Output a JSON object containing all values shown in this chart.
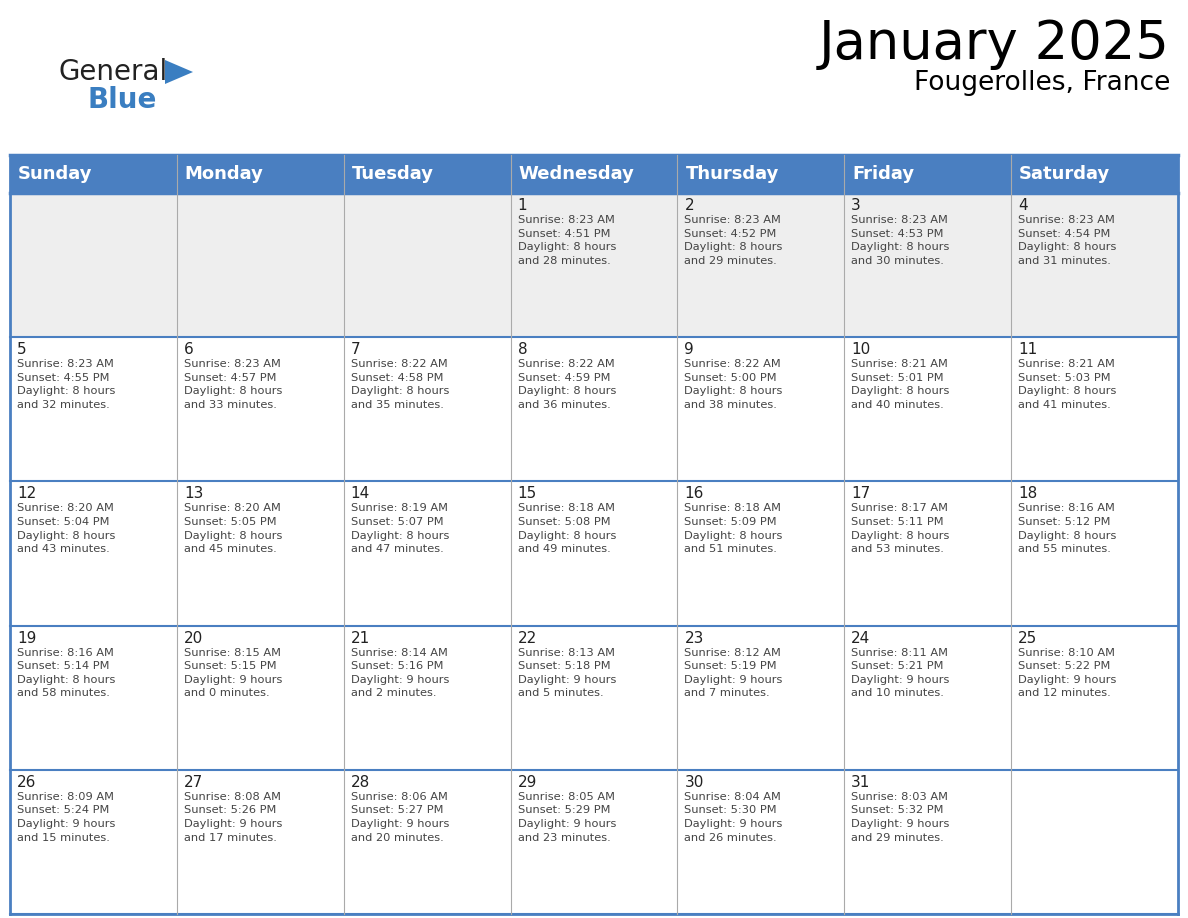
{
  "title": "January 2025",
  "subtitle": "Fougerolles, France",
  "header_bg": "#4A7FC1",
  "header_text_color": "#FFFFFF",
  "header_font_size": 13,
  "day_names": [
    "Sunday",
    "Monday",
    "Tuesday",
    "Wednesday",
    "Thursday",
    "Friday",
    "Saturday"
  ],
  "title_font_size": 38,
  "subtitle_font_size": 19,
  "cell_text_color": "#444444",
  "cell_number_color": "#222222",
  "cell_bg_white": "#FFFFFF",
  "cell_bg_gray": "#EEEEEE",
  "border_color": "#4A7FC1",
  "grid_line_color": "#AAAAAA",
  "logo_general_color": "#222222",
  "logo_blue_color": "#3A7EC1",
  "logo_triangle_color": "#3A7EC1",
  "days": [
    {
      "day": 0,
      "row": 0,
      "col": 0,
      "text": ""
    },
    {
      "day": 0,
      "row": 0,
      "col": 1,
      "text": ""
    },
    {
      "day": 0,
      "row": 0,
      "col": 2,
      "text": ""
    },
    {
      "day": 1,
      "row": 0,
      "col": 3,
      "text": "Sunrise: 8:23 AM\nSunset: 4:51 PM\nDaylight: 8 hours\nand 28 minutes."
    },
    {
      "day": 2,
      "row": 0,
      "col": 4,
      "text": "Sunrise: 8:23 AM\nSunset: 4:52 PM\nDaylight: 8 hours\nand 29 minutes."
    },
    {
      "day": 3,
      "row": 0,
      "col": 5,
      "text": "Sunrise: 8:23 AM\nSunset: 4:53 PM\nDaylight: 8 hours\nand 30 minutes."
    },
    {
      "day": 4,
      "row": 0,
      "col": 6,
      "text": "Sunrise: 8:23 AM\nSunset: 4:54 PM\nDaylight: 8 hours\nand 31 minutes."
    },
    {
      "day": 5,
      "row": 1,
      "col": 0,
      "text": "Sunrise: 8:23 AM\nSunset: 4:55 PM\nDaylight: 8 hours\nand 32 minutes."
    },
    {
      "day": 6,
      "row": 1,
      "col": 1,
      "text": "Sunrise: 8:23 AM\nSunset: 4:57 PM\nDaylight: 8 hours\nand 33 minutes."
    },
    {
      "day": 7,
      "row": 1,
      "col": 2,
      "text": "Sunrise: 8:22 AM\nSunset: 4:58 PM\nDaylight: 8 hours\nand 35 minutes."
    },
    {
      "day": 8,
      "row": 1,
      "col": 3,
      "text": "Sunrise: 8:22 AM\nSunset: 4:59 PM\nDaylight: 8 hours\nand 36 minutes."
    },
    {
      "day": 9,
      "row": 1,
      "col": 4,
      "text": "Sunrise: 8:22 AM\nSunset: 5:00 PM\nDaylight: 8 hours\nand 38 minutes."
    },
    {
      "day": 10,
      "row": 1,
      "col": 5,
      "text": "Sunrise: 8:21 AM\nSunset: 5:01 PM\nDaylight: 8 hours\nand 40 minutes."
    },
    {
      "day": 11,
      "row": 1,
      "col": 6,
      "text": "Sunrise: 8:21 AM\nSunset: 5:03 PM\nDaylight: 8 hours\nand 41 minutes."
    },
    {
      "day": 12,
      "row": 2,
      "col": 0,
      "text": "Sunrise: 8:20 AM\nSunset: 5:04 PM\nDaylight: 8 hours\nand 43 minutes."
    },
    {
      "day": 13,
      "row": 2,
      "col": 1,
      "text": "Sunrise: 8:20 AM\nSunset: 5:05 PM\nDaylight: 8 hours\nand 45 minutes."
    },
    {
      "day": 14,
      "row": 2,
      "col": 2,
      "text": "Sunrise: 8:19 AM\nSunset: 5:07 PM\nDaylight: 8 hours\nand 47 minutes."
    },
    {
      "day": 15,
      "row": 2,
      "col": 3,
      "text": "Sunrise: 8:18 AM\nSunset: 5:08 PM\nDaylight: 8 hours\nand 49 minutes."
    },
    {
      "day": 16,
      "row": 2,
      "col": 4,
      "text": "Sunrise: 8:18 AM\nSunset: 5:09 PM\nDaylight: 8 hours\nand 51 minutes."
    },
    {
      "day": 17,
      "row": 2,
      "col": 5,
      "text": "Sunrise: 8:17 AM\nSunset: 5:11 PM\nDaylight: 8 hours\nand 53 minutes."
    },
    {
      "day": 18,
      "row": 2,
      "col": 6,
      "text": "Sunrise: 8:16 AM\nSunset: 5:12 PM\nDaylight: 8 hours\nand 55 minutes."
    },
    {
      "day": 19,
      "row": 3,
      "col": 0,
      "text": "Sunrise: 8:16 AM\nSunset: 5:14 PM\nDaylight: 8 hours\nand 58 minutes."
    },
    {
      "day": 20,
      "row": 3,
      "col": 1,
      "text": "Sunrise: 8:15 AM\nSunset: 5:15 PM\nDaylight: 9 hours\nand 0 minutes."
    },
    {
      "day": 21,
      "row": 3,
      "col": 2,
      "text": "Sunrise: 8:14 AM\nSunset: 5:16 PM\nDaylight: 9 hours\nand 2 minutes."
    },
    {
      "day": 22,
      "row": 3,
      "col": 3,
      "text": "Sunrise: 8:13 AM\nSunset: 5:18 PM\nDaylight: 9 hours\nand 5 minutes."
    },
    {
      "day": 23,
      "row": 3,
      "col": 4,
      "text": "Sunrise: 8:12 AM\nSunset: 5:19 PM\nDaylight: 9 hours\nand 7 minutes."
    },
    {
      "day": 24,
      "row": 3,
      "col": 5,
      "text": "Sunrise: 8:11 AM\nSunset: 5:21 PM\nDaylight: 9 hours\nand 10 minutes."
    },
    {
      "day": 25,
      "row": 3,
      "col": 6,
      "text": "Sunrise: 8:10 AM\nSunset: 5:22 PM\nDaylight: 9 hours\nand 12 minutes."
    },
    {
      "day": 26,
      "row": 4,
      "col": 0,
      "text": "Sunrise: 8:09 AM\nSunset: 5:24 PM\nDaylight: 9 hours\nand 15 minutes."
    },
    {
      "day": 27,
      "row": 4,
      "col": 1,
      "text": "Sunrise: 8:08 AM\nSunset: 5:26 PM\nDaylight: 9 hours\nand 17 minutes."
    },
    {
      "day": 28,
      "row": 4,
      "col": 2,
      "text": "Sunrise: 8:06 AM\nSunset: 5:27 PM\nDaylight: 9 hours\nand 20 minutes."
    },
    {
      "day": 29,
      "row": 4,
      "col": 3,
      "text": "Sunrise: 8:05 AM\nSunset: 5:29 PM\nDaylight: 9 hours\nand 23 minutes."
    },
    {
      "day": 30,
      "row": 4,
      "col": 4,
      "text": "Sunrise: 8:04 AM\nSunset: 5:30 PM\nDaylight: 9 hours\nand 26 minutes."
    },
    {
      "day": 31,
      "row": 4,
      "col": 5,
      "text": "Sunrise: 8:03 AM\nSunset: 5:32 PM\nDaylight: 9 hours\nand 29 minutes."
    },
    {
      "day": 0,
      "row": 4,
      "col": 6,
      "text": ""
    }
  ]
}
